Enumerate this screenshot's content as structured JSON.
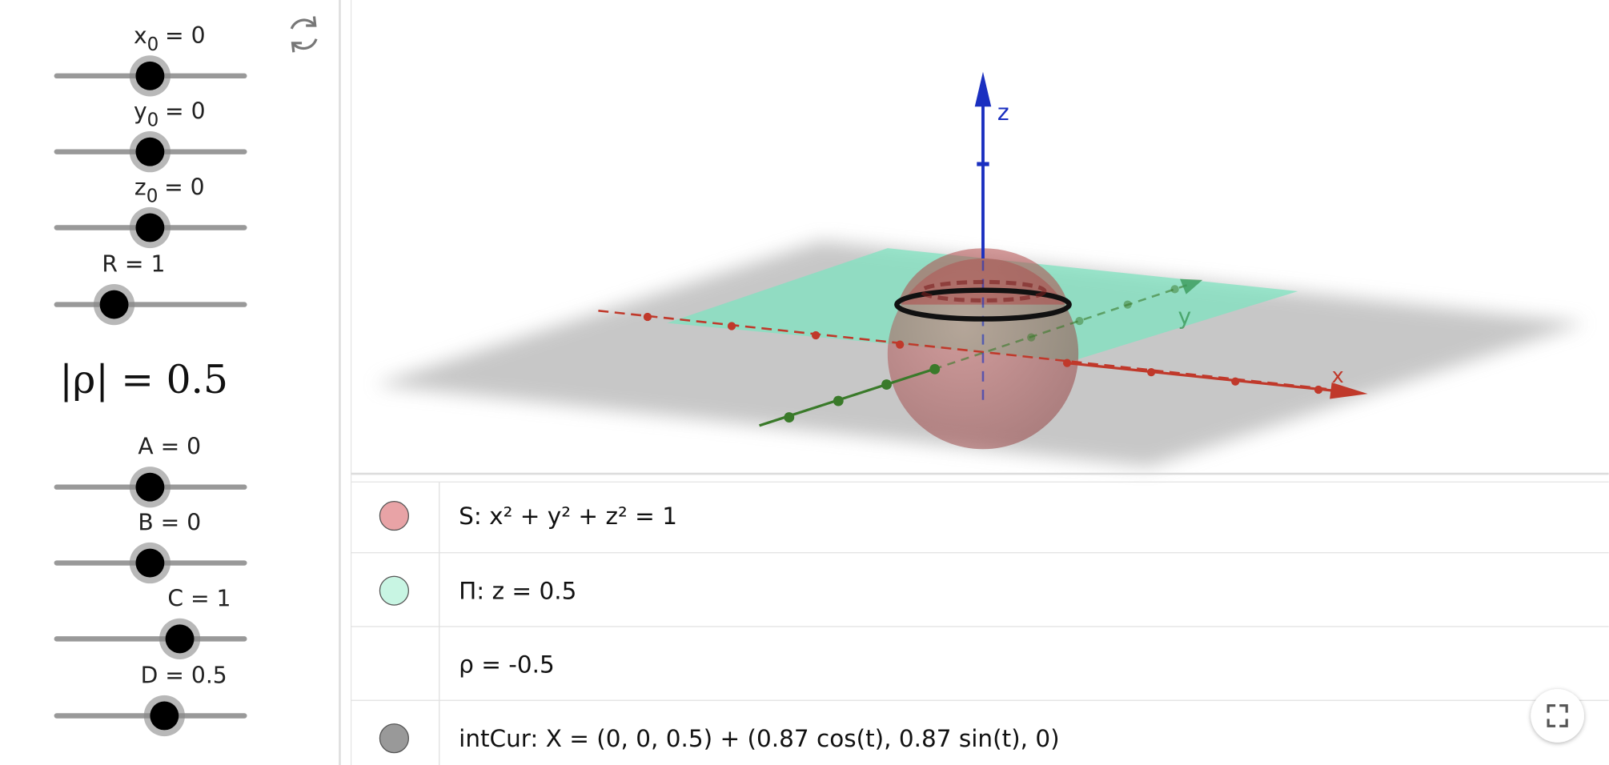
{
  "sliders": [
    {
      "name": "x",
      "subscript": "0",
      "rest": "= 0"
    },
    {
      "name": "y",
      "subscript": "0",
      "rest": "= 0"
    },
    {
      "name": "z",
      "subscript": "0",
      "rest": "= 0"
    },
    {
      "label": "R = 1"
    },
    {
      "label": "A = 0"
    },
    {
      "label": "B = 0"
    },
    {
      "label": "C = 1"
    },
    {
      "label": "D = 0.5"
    }
  ],
  "rho_abs": "|ρ| = 0.5",
  "axes": {
    "x": "x",
    "y": "y",
    "z": "z"
  },
  "algebra": [
    {
      "text": "S: x² + y² + z² = 1",
      "color": "#e8a3a6"
    },
    {
      "text": "Π: z = 0.5",
      "color": "#c8f5e3"
    },
    {
      "text": "ρ = -0.5",
      "color": null
    },
    {
      "text": "intCur: X = (0, 0, 0.5) + (0.87 cos(t), 0.87 sin(t), 0)",
      "color": "#999999"
    }
  ]
}
